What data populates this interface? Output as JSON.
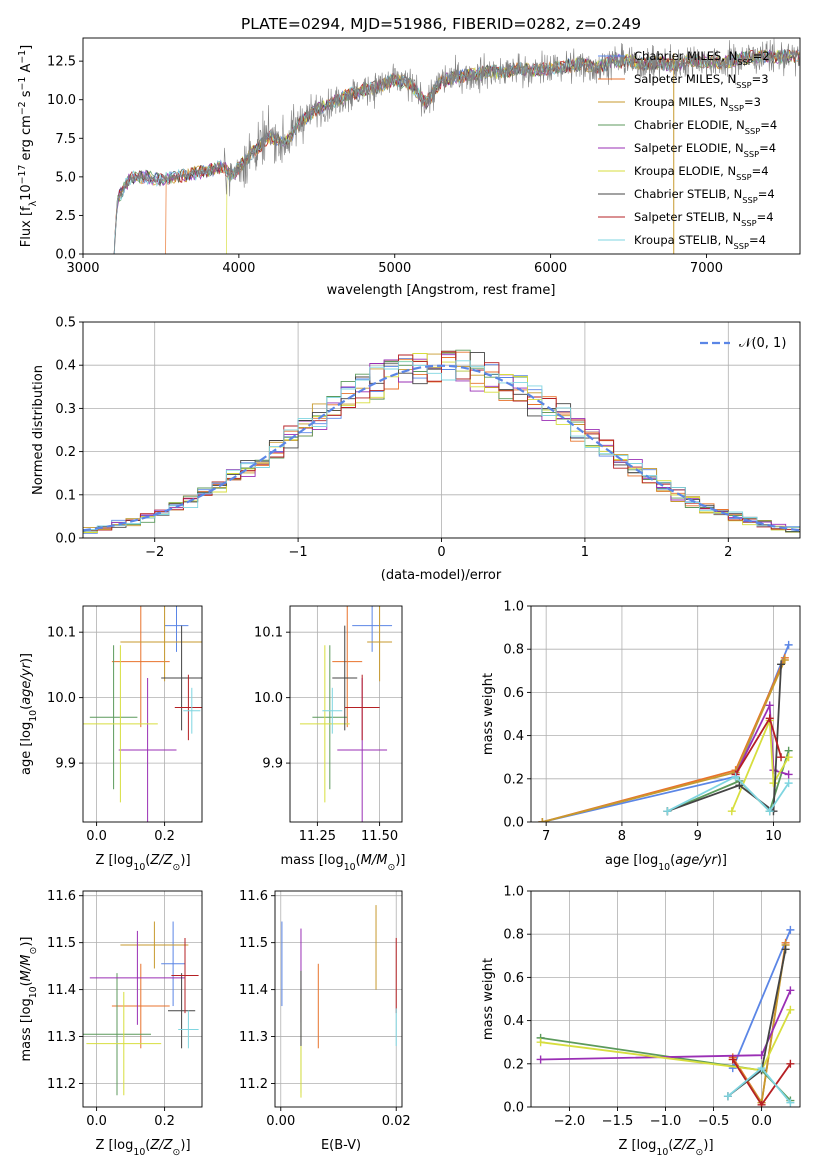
{
  "colors": [
    "#5b86e6",
    "#e8732c",
    "#c79a2e",
    "#5c9a5c",
    "#9a2fb5",
    "#d7de3e",
    "#444444",
    "#b52024",
    "#7fd5e0"
  ],
  "chart_data": [
    {
      "id": "spectrum",
      "type": "line",
      "title": "PLATE=0294, MJD=51986, FIBERID=0282, z=0.249",
      "xlabel": "wavelength [Angstrom, rest frame]",
      "ylabel": "Flux [f_λ 10^-17 erg cm^-2 s^-1 A^-1]",
      "xlim": [
        3000,
        7600
      ],
      "ylim": [
        0,
        14
      ],
      "xticks": [
        "3000",
        "4000",
        "5000",
        "6000",
        "7000"
      ],
      "yticks": [
        "0.0",
        "2.5",
        "5.0",
        "7.5",
        "10.0",
        "12.5"
      ],
      "legend_position": "right",
      "model_start_wavelengths": [
        3200,
        3530,
        3200,
        3200,
        3200,
        3920,
        3200,
        3200,
        3200
      ],
      "continuum": {
        "x": [
          3200,
          3220,
          3300,
          3400,
          3500,
          3600,
          3700,
          3800,
          3900,
          3950,
          4000,
          4100,
          4200,
          4300,
          4400,
          4500,
          4600,
          4700,
          4800,
          4900,
          5000,
          5100,
          5200,
          5300,
          5400,
          5500,
          5600,
          5700,
          5800,
          5900,
          6000,
          6100,
          6200,
          6300,
          6400,
          6500,
          6600,
          6700,
          6800,
          6900,
          7000,
          7100,
          7200,
          7300
        ],
        "y": [
          0,
          3.5,
          4.9,
          5.0,
          4.8,
          5.0,
          5.2,
          5.4,
          5.7,
          5.0,
          5.6,
          6.7,
          7.6,
          7.2,
          8.6,
          9.4,
          9.8,
          10.3,
          10.6,
          10.9,
          11.3,
          11.0,
          9.8,
          11.2,
          11.5,
          11.6,
          11.8,
          11.8,
          12.0,
          11.9,
          12.0,
          12.2,
          12.3,
          12.1,
          12.5,
          12.5,
          12.3,
          12.4,
          12.2,
          12.6,
          12.5,
          12.4,
          12.6,
          12.8
        ]
      },
      "series": [
        {
          "name": "Chabrier MILES, N_SSP=2",
          "label_main": "Chabrier MILES, N",
          "label_sub": "SSP",
          "label_tail": "=2"
        },
        {
          "name": "Salpeter MILES, N_SSP=3",
          "label_main": "Salpeter MILES, N",
          "label_sub": "SSP",
          "label_tail": "=3"
        },
        {
          "name": "Kroupa MILES, N_SSP=3",
          "label_main": "Kroupa MILES, N",
          "label_sub": "SSP",
          "label_tail": "=3"
        },
        {
          "name": "Chabrier ELODIE, N_SSP=4",
          "label_main": "Chabrier ELODIE, N",
          "label_sub": "SSP",
          "label_tail": "=4"
        },
        {
          "name": "Salpeter ELODIE, N_SSP=4",
          "label_main": "Salpeter ELODIE, N",
          "label_sub": "SSP",
          "label_tail": "=4"
        },
        {
          "name": "Kroupa ELODIE, N_SSP=4",
          "label_main": "Kroupa ELODIE, N",
          "label_sub": "SSP",
          "label_tail": "=4"
        },
        {
          "name": "Chabrier STELIB, N_SSP=4",
          "label_main": "Chabrier STELIB, N",
          "label_sub": "SSP",
          "label_tail": "=4"
        },
        {
          "name": "Salpeter STELIB, N_SSP=4",
          "label_main": "Salpeter STELIB, N",
          "label_sub": "SSP",
          "label_tail": "=4"
        },
        {
          "name": "Kroupa STELIB, N_SSP=4",
          "label_main": "Kroupa STELIB, N",
          "label_sub": "SSP",
          "label_tail": "=4"
        }
      ]
    },
    {
      "id": "residuals",
      "type": "line",
      "xlabel": "(data-model)/error",
      "ylabel": "Normed distribution",
      "xlim": [
        -2.5,
        2.5
      ],
      "ylim": [
        0,
        0.5
      ],
      "xticks": [
        "−2",
        "−1",
        "0",
        "1",
        "2"
      ],
      "yticks": [
        "0.0",
        "0.1",
        "0.2",
        "0.3",
        "0.4",
        "0.5"
      ],
      "grid": true,
      "legend": "𝒩(0, 1)",
      "legend_position": "top-right",
      "bin_width": 0.1
    },
    {
      "id": "age-vs-Z",
      "type": "scatter",
      "xlabel": "Z [log10(Z/Z☉)]",
      "ylabel": "age [log10(age/yr)]",
      "xlim": [
        -0.04,
        0.31
      ],
      "ylim": [
        9.81,
        10.14
      ],
      "xticks": [
        "0.0",
        "0.2"
      ],
      "yticks": [
        "9.9",
        "10.0",
        "10.1"
      ],
      "grid": true,
      "points": [
        {
          "x": 0.235,
          "y": 10.11,
          "xerr": 0.035,
          "yerr": 0.04
        },
        {
          "x": 0.13,
          "y": 10.055,
          "xerr": 0.085,
          "yerr": 0.1
        },
        {
          "x": 0.2,
          "y": 10.085,
          "xerr": 0.13,
          "yerr": 0.06
        },
        {
          "x": 0.05,
          "y": 9.97,
          "xerr": 0.07,
          "yerr": 0.11
        },
        {
          "x": 0.15,
          "y": 9.92,
          "xerr": 0.085,
          "yerr": 0.11
        },
        {
          "x": 0.07,
          "y": 9.96,
          "xerr": 0.11,
          "yerr": 0.12
        },
        {
          "x": 0.25,
          "y": 10.03,
          "xerr": 0.06,
          "yerr": 0.08
        },
        {
          "x": 0.27,
          "y": 9.985,
          "xerr": 0.04,
          "yerr": 0.05
        },
        {
          "x": 0.28,
          "y": 9.98,
          "xerr": 0.025,
          "yerr": 0.035
        }
      ]
    },
    {
      "id": "age-vs-mass",
      "type": "scatter",
      "xlabel": "mass [log10(M/M☉)]",
      "ylabel": "",
      "xlim": [
        11.14,
        11.59
      ],
      "ylim": [
        9.81,
        10.14
      ],
      "xticks": [
        "11.25",
        "11.50"
      ],
      "yticks": [
        "9.9",
        "10.0",
        "10.1"
      ],
      "grid": true,
      "points": [
        {
          "x": 11.47,
          "y": 10.11,
          "xerr": 0.08,
          "yerr": 0.04
        },
        {
          "x": 11.37,
          "y": 10.055,
          "xerr": 0.06,
          "yerr": 0.1
        },
        {
          "x": 11.5,
          "y": 10.085,
          "xerr": 0.05,
          "yerr": 0.06
        },
        {
          "x": 11.3,
          "y": 9.97,
          "xerr": 0.07,
          "yerr": 0.11
        },
        {
          "x": 11.43,
          "y": 9.92,
          "xerr": 0.1,
          "yerr": 0.11
        },
        {
          "x": 11.28,
          "y": 9.96,
          "xerr": 0.1,
          "yerr": 0.12
        },
        {
          "x": 11.36,
          "y": 10.03,
          "xerr": 0.05,
          "yerr": 0.08
        },
        {
          "x": 11.43,
          "y": 9.985,
          "xerr": 0.07,
          "yerr": 0.05
        },
        {
          "x": 11.31,
          "y": 9.98,
          "xerr": 0.04,
          "yerr": 0.035
        }
      ]
    },
    {
      "id": "weight-vs-age",
      "type": "line",
      "xlabel": "age [log10(age/yr)]",
      "ylabel": "mass weight",
      "xlim": [
        6.8,
        10.35
      ],
      "ylim": [
        0,
        1
      ],
      "xticks": [
        "7",
        "8",
        "9",
        "10"
      ],
      "yticks": [
        "0.0",
        "0.2",
        "0.4",
        "0.6",
        "0.8",
        "1.0"
      ],
      "grid": true,
      "series": [
        {
          "x": [
            6.95,
            9.5,
            10.2
          ],
          "y": [
            0.0,
            0.21,
            0.82
          ]
        },
        {
          "x": [
            6.95,
            9.5,
            10.15
          ],
          "y": [
            0.0,
            0.24,
            0.76
          ]
        },
        {
          "x": [
            6.95,
            9.5,
            10.15
          ],
          "y": [
            0.0,
            0.23,
            0.75
          ]
        },
        {
          "x": [
            8.6,
            9.55,
            9.95,
            10.2
          ],
          "y": [
            0.05,
            0.19,
            0.05,
            0.33
          ]
        },
        {
          "x": [
            9.5,
            9.95,
            10.0,
            10.2
          ],
          "y": [
            0.22,
            0.54,
            0.24,
            0.22
          ]
        },
        {
          "x": [
            9.45,
            9.95,
            10.0,
            10.2
          ],
          "y": [
            0.05,
            0.47,
            0.18,
            0.3
          ]
        },
        {
          "x": [
            8.6,
            9.55,
            10.0,
            10.1
          ],
          "y": [
            0.05,
            0.17,
            0.05,
            0.73
          ]
        },
        {
          "x": [
            9.5,
            9.95,
            10.1
          ],
          "y": [
            0.22,
            0.48,
            0.3
          ]
        },
        {
          "x": [
            8.6,
            9.5,
            9.95,
            10.2
          ],
          "y": [
            0.05,
            0.21,
            0.05,
            0.18
          ]
        }
      ]
    },
    {
      "id": "mass-vs-Z",
      "type": "scatter",
      "xlabel": "Z [log10(Z/Z☉)]",
      "ylabel": "mass [log10(M/M☉)]",
      "xlim": [
        -0.04,
        0.31
      ],
      "ylim": [
        11.15,
        11.61
      ],
      "xticks": [
        "0.0",
        "0.2"
      ],
      "yticks": [
        "11.2",
        "11.3",
        "11.4",
        "11.5",
        "11.6"
      ],
      "grid": true,
      "points": [
        {
          "x": 0.225,
          "y": 11.455,
          "xerr": 0.035,
          "yerr": 0.09
        },
        {
          "x": 0.13,
          "y": 11.365,
          "xerr": 0.085,
          "yerr": 0.09
        },
        {
          "x": 0.17,
          "y": 11.495,
          "xerr": 0.1,
          "yerr": 0.05
        },
        {
          "x": 0.06,
          "y": 11.305,
          "xerr": 0.1,
          "yerr": 0.13
        },
        {
          "x": 0.12,
          "y": 11.425,
          "xerr": 0.14,
          "yerr": 0.1
        },
        {
          "x": 0.08,
          "y": 11.285,
          "xerr": 0.11,
          "yerr": 0.11
        },
        {
          "x": 0.25,
          "y": 11.355,
          "xerr": 0.04,
          "yerr": 0.08
        },
        {
          "x": 0.26,
          "y": 11.43,
          "xerr": 0.04,
          "yerr": 0.08
        },
        {
          "x": 0.27,
          "y": 11.315,
          "xerr": 0.03,
          "yerr": 0.04
        }
      ]
    },
    {
      "id": "mass-vs-EBV",
      "type": "scatter",
      "xlabel": "E(B-V)",
      "ylabel": "",
      "xlim": [
        -0.001,
        0.021
      ],
      "ylim": [
        11.15,
        11.61
      ],
      "xticks": [
        "0.00",
        "0.02"
      ],
      "yticks": [
        "11.2",
        "11.3",
        "11.4",
        "11.5",
        "11.6"
      ],
      "grid": true,
      "points": [
        {
          "x": 0.0002,
          "y": 11.455,
          "xerr": 0,
          "yerr": 0.09
        },
        {
          "x": 0.0065,
          "y": 11.365,
          "xerr": 0,
          "yerr": 0.09
        },
        {
          "x": 0.0165,
          "y": 11.49,
          "xerr": 0,
          "yerr": 0.09
        },
        {
          "x": 0.0035,
          "y": 11.31,
          "xerr": 0,
          "yerr": 0.13
        },
        {
          "x": 0.0035,
          "y": 11.43,
          "xerr": 0,
          "yerr": 0.1
        },
        {
          "x": 0.0035,
          "y": 11.28,
          "xerr": 0,
          "yerr": 0.11
        },
        {
          "x": 0.0035,
          "y": 11.36,
          "xerr": 0,
          "yerr": 0.08
        },
        {
          "x": 0.02,
          "y": 11.43,
          "xerr": 0,
          "yerr": 0.08
        },
        {
          "x": 0.02,
          "y": 11.32,
          "xerr": 0,
          "yerr": 0.04
        }
      ]
    },
    {
      "id": "weight-vs-Z",
      "type": "line",
      "xlabel": "Z [log10(Z/Z☉)]",
      "ylabel": "mass weight",
      "xlim": [
        -2.4,
        0.4
      ],
      "ylim": [
        0,
        1
      ],
      "xticks": [
        "−2.0",
        "−1.5",
        "−1.0",
        "−0.5",
        "0.0"
      ],
      "yticks": [
        "0.0",
        "0.2",
        "0.4",
        "0.6",
        "0.8",
        "1.0"
      ],
      "grid": true,
      "series": [
        {
          "x": [
            -0.3,
            0.3
          ],
          "y": [
            0.18,
            0.82
          ]
        },
        {
          "x": [
            -0.3,
            0.0,
            0.25
          ],
          "y": [
            0.23,
            0.02,
            0.76
          ]
        },
        {
          "x": [
            -0.3,
            0.0,
            0.25
          ],
          "y": [
            0.22,
            0.02,
            0.75
          ]
        },
        {
          "x": [
            -2.3,
            0.0,
            0.3
          ],
          "y": [
            0.32,
            0.17,
            0.03
          ]
        },
        {
          "x": [
            -2.3,
            0.0,
            0.3
          ],
          "y": [
            0.22,
            0.24,
            0.54
          ]
        },
        {
          "x": [
            -2.3,
            0.0,
            0.3
          ],
          "y": [
            0.3,
            0.17,
            0.45
          ]
        },
        {
          "x": [
            -0.35,
            0.0,
            0.25
          ],
          "y": [
            0.05,
            0.17,
            0.73
          ]
        },
        {
          "x": [
            -0.3,
            0.0,
            0.3
          ],
          "y": [
            0.22,
            0.01,
            0.2
          ]
        },
        {
          "x": [
            -0.35,
            0.0,
            0.3
          ],
          "y": [
            0.05,
            0.18,
            0.02
          ]
        }
      ]
    }
  ]
}
